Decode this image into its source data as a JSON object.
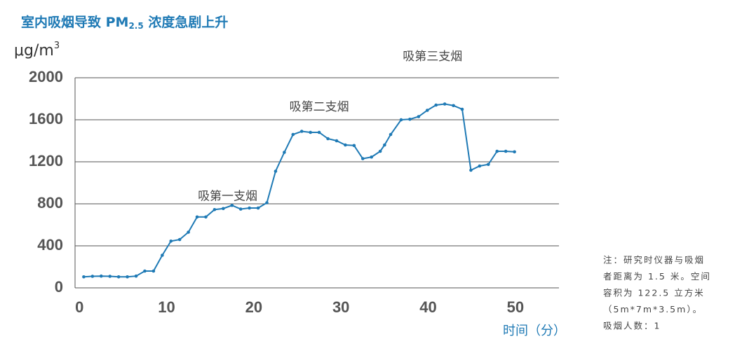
{
  "chart_data": {
    "type": "line",
    "title": {
      "main": "室内吸烟导致 PM",
      "sub": "2.5",
      "rest": " 浓度急剧上升"
    },
    "ylabel": {
      "text": "μg/m",
      "sup": "3"
    },
    "xlabel": "时间（分）",
    "x": [
      0.5,
      1.5,
      2.5,
      3.5,
      4.5,
      5.5,
      6.5,
      7.5,
      8.5,
      9.5,
      10.5,
      11.5,
      12.5,
      13.5,
      14.5,
      15.5,
      16.5,
      17.5,
      18.5,
      19.5,
      20.5,
      21.5,
      22.5,
      23.5,
      24.5,
      25.5,
      26.5,
      27.5,
      28.5,
      29.5,
      30.5,
      31.5,
      32.5,
      33.5,
      34.5,
      35.0,
      35.7,
      36.9,
      37.9,
      38.9,
      39.9,
      40.9,
      41.9,
      42.9,
      43.9,
      44.9,
      45.9,
      46.9,
      47.9,
      48.9,
      49.9
    ],
    "series": [
      {
        "name": "PM2.5",
        "color": "#1f7ab5",
        "values": [
          105,
          110,
          112,
          110,
          105,
          105,
          112,
          160,
          160,
          310,
          445,
          460,
          530,
          675,
          675,
          745,
          755,
          785,
          750,
          760,
          760,
          810,
          1110,
          1290,
          1460,
          1490,
          1480,
          1480,
          1420,
          1400,
          1360,
          1355,
          1230,
          1245,
          1300,
          1360,
          1460,
          1600,
          1605,
          1630,
          1690,
          1740,
          1750,
          1735,
          1700,
          1120,
          1160,
          1175,
          1300,
          1300,
          1295
        ]
      }
    ],
    "xlim": [
      -0.5,
      55
    ],
    "ylim": [
      0,
      2000
    ],
    "xticks": [
      0,
      10,
      20,
      30,
      40,
      50
    ],
    "yticks": [
      0,
      400,
      800,
      1200,
      1600,
      2000
    ],
    "grid": true,
    "annotations": [
      {
        "text": "吸第一支烟",
        "x": 17,
        "y": 870
      },
      {
        "text": "吸第二支烟",
        "x": 27.5,
        "y": 1720
      },
      {
        "text": "吸第三支烟",
        "x": 40.5,
        "y": 2200
      }
    ],
    "note": [
      "注：研究时仪器与吸烟",
      "者距离为 1.5 米。空间",
      "容积为 122.5 立方米",
      "（5m*7m*3.5m）。",
      "吸烟人数：1"
    ]
  }
}
